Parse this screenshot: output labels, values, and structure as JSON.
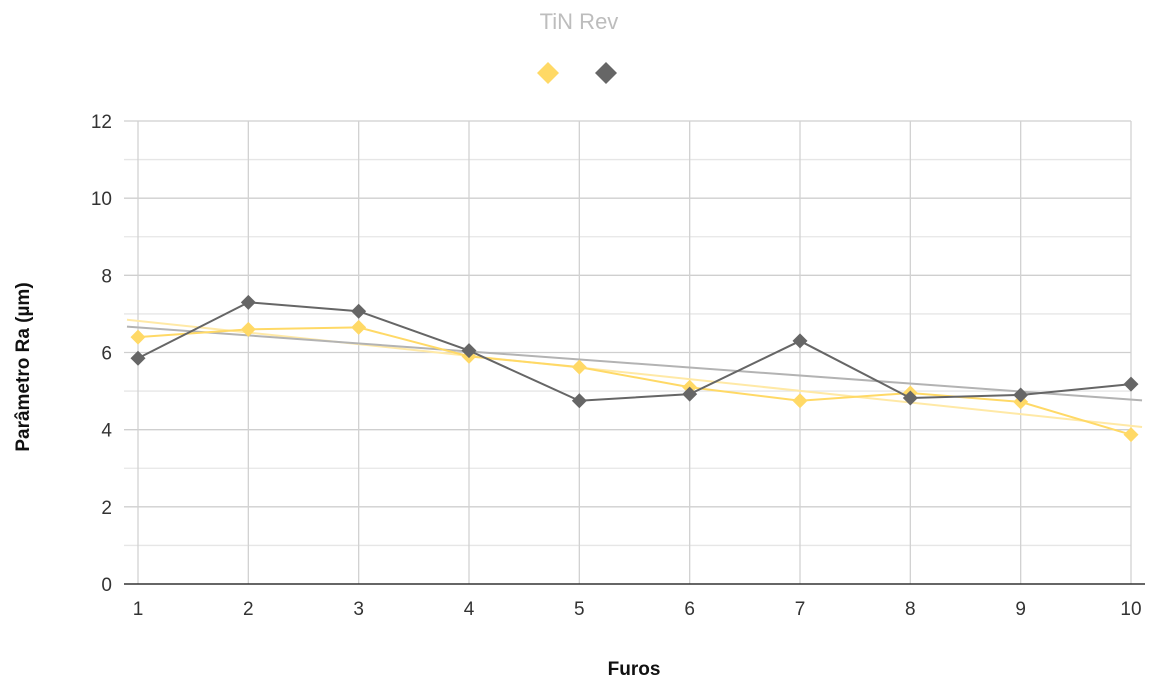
{
  "chart_data": {
    "type": "line",
    "title": "TiN  Rev",
    "xlabel": "Furos",
    "ylabel": "Parâmetro Ra (µm)",
    "x": [
      1,
      2,
      3,
      4,
      5,
      6,
      7,
      8,
      9,
      10
    ],
    "ylim": [
      0,
      12
    ],
    "yticks": [
      0,
      2,
      4,
      6,
      8,
      10,
      12
    ],
    "grid": true,
    "legend": "top-center",
    "series": [
      {
        "key": "tin",
        "color": "#ffd966",
        "values": [
          6.4,
          6.6,
          6.65,
          5.9,
          5.62,
          5.1,
          4.75,
          4.95,
          4.72,
          3.87
        ],
        "trendline": [
          6.82,
          4.1
        ]
      },
      {
        "key": "rev",
        "color": "#666666",
        "values": [
          5.85,
          7.3,
          7.07,
          6.05,
          4.75,
          4.92,
          6.3,
          4.82,
          4.9,
          5.18
        ],
        "trendline": [
          6.65,
          4.78
        ]
      }
    ]
  }
}
